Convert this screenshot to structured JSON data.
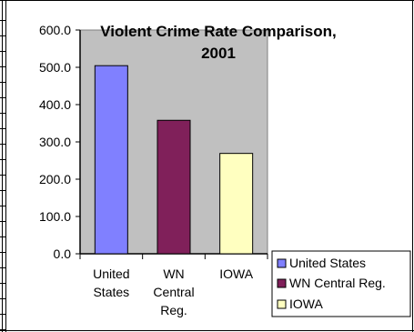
{
  "chart_data": {
    "type": "bar",
    "title": "Violent Crime Rate Comparison, 2001",
    "title_lines": [
      "Violent Crime Rate Comparison,",
      "2001"
    ],
    "categories": [
      [
        "United",
        "States"
      ],
      [
        "WN",
        "Central",
        "Reg."
      ],
      [
        "IOWA"
      ]
    ],
    "series": [
      {
        "name": "United States",
        "values": [
          504.4,
          null,
          null
        ],
        "color": "#8080ff"
      },
      {
        "name": "WN Central Reg.",
        "values": [
          null,
          357.9,
          null
        ],
        "color": "#80205a"
      },
      {
        "name": "IOWA",
        "values": [
          null,
          null,
          269.1
        ],
        "color": "#ffffc0"
      }
    ],
    "values": [
      504.4,
      357.9,
      269.1
    ],
    "ylim": [
      0,
      600
    ],
    "yticks": [
      "0.0",
      "100.0",
      "200.0",
      "300.0",
      "400.0",
      "500.0",
      "600.0"
    ],
    "grid": false,
    "legend": "bottom-right",
    "plot_background": "#c0c0c0"
  }
}
